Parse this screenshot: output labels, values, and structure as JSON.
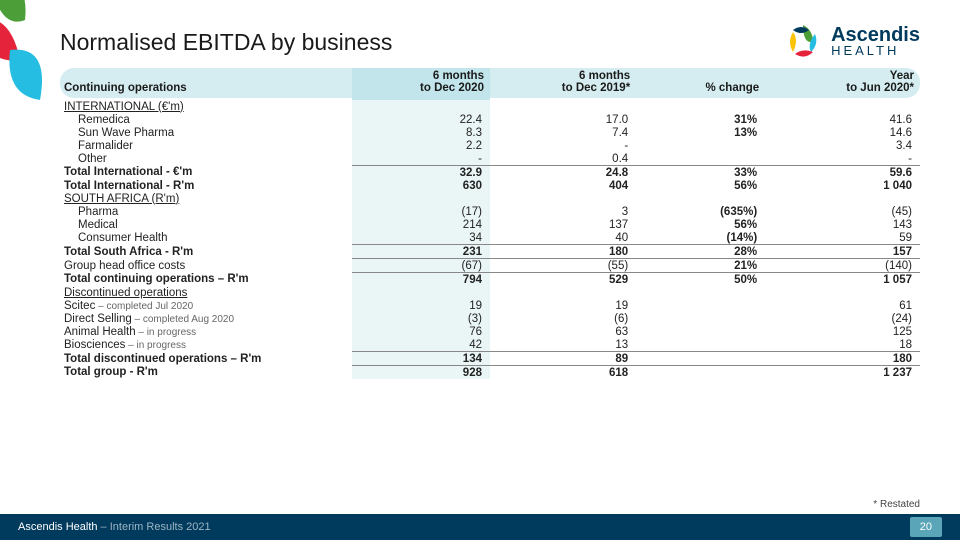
{
  "title": "Normalised EBITDA by business",
  "logo": {
    "name": "Ascendis",
    "tagline": "HEALTH"
  },
  "headers": {
    "label": "Continuing operations",
    "c1": "6 months\nto Dec 2020",
    "c2": "6 months\nto Dec 2019*",
    "c3": "% change",
    "c4": "Year\nto Jun 2020*"
  },
  "rows": [
    {
      "label": "INTERNATIONAL (€'m)",
      "style": "u",
      "c1": "",
      "c2": "",
      "c3": "",
      "c4": ""
    },
    {
      "label": "Remedica",
      "style": "ind",
      "c1": "22.4",
      "c2": "17.0",
      "c3": "31%",
      "c3b": true,
      "c4": "41.6"
    },
    {
      "label": "Sun Wave Pharma",
      "style": "ind",
      "c1": "8.3",
      "c2": "7.4",
      "c3": "13%",
      "c3b": true,
      "c4": "14.6"
    },
    {
      "label": "Farmalider",
      "style": "ind",
      "c1": "2.2",
      "c2": "-",
      "c3": "",
      "c4": "3.4"
    },
    {
      "label": "Other",
      "style": "ind",
      "c1": "-",
      "c2": "0.4",
      "c3": "",
      "c4": "-"
    },
    {
      "label": "Total International - €'m",
      "style": "b",
      "line": true,
      "c1": "32.9",
      "c2": "24.8",
      "c3": "33%",
      "c3b": true,
      "c4": "59.6"
    },
    {
      "label": "Total International - R'm",
      "style": "b",
      "c1": "630",
      "c2": "404",
      "c3": "56%",
      "c3b": true,
      "c4": "1 040"
    },
    {
      "label": "SOUTH AFRICA (R'm)",
      "style": "u",
      "c1": "",
      "c2": "",
      "c3": "",
      "c4": ""
    },
    {
      "label": "Pharma",
      "style": "ind",
      "c1": "(17)",
      "c2": "3",
      "c3": "(635%)",
      "c3b": true,
      "c4": "(45)"
    },
    {
      "label": "Medical",
      "style": "ind",
      "c1": "214",
      "c2": "137",
      "c3": "56%",
      "c3b": true,
      "c4": "143"
    },
    {
      "label": "Consumer Health",
      "style": "ind",
      "c1": "34",
      "c2": "40",
      "c3": "(14%)",
      "c3b": true,
      "c4": "59"
    },
    {
      "label": "Total South Africa - R'm",
      "style": "b",
      "line": true,
      "c1": "231",
      "c2": "180",
      "c3": "28%",
      "c3b": true,
      "c4": "157"
    },
    {
      "label": "Group head office costs",
      "line": true,
      "c1": "(67)",
      "c2": "(55)",
      "c3": "21%",
      "c3b": true,
      "c4": "(140)"
    },
    {
      "label": "Total continuing operations – R'm",
      "style": "b",
      "line": true,
      "c1": "794",
      "c2": "529",
      "c3": "50%",
      "c3b": true,
      "c4": "1 057"
    },
    {
      "label": "Discontinued operations",
      "style": "u",
      "c1": "",
      "c2": "",
      "c3": "",
      "c4": ""
    },
    {
      "label": "Scitec",
      "sub": " – completed Jul 2020",
      "c1": "19",
      "c2": "19",
      "c3": "",
      "c4": "61"
    },
    {
      "label": "Direct Selling",
      "sub": " – completed Aug 2020",
      "c1": "(3)",
      "c2": "(6)",
      "c3": "",
      "c4": "(24)"
    },
    {
      "label": "Animal Health",
      "sub": " – in progress",
      "c1": "76",
      "c2": "63",
      "c3": "",
      "c4": "125"
    },
    {
      "label": "Biosciences",
      "sub": " – in progress",
      "c1": "42",
      "c2": "13",
      "c3": "",
      "c4": "18"
    },
    {
      "label": "Total discontinued operations – R'm",
      "style": "b",
      "line": true,
      "c1": "134",
      "c2": "89",
      "c3": "",
      "c4": "180"
    },
    {
      "label": "Total group - R'm",
      "style": "b",
      "line": true,
      "c1": "928",
      "c2": "618",
      "c3": "",
      "c4": "1 237"
    }
  ],
  "restated": "* Restated",
  "footer": {
    "company": "Ascendis Health",
    "sub": " – Interim Results 2021",
    "page": "20"
  },
  "colors": {
    "footer_bg": "#003a5d",
    "band": "#d5edf0",
    "highlight": "#eaf5f6"
  }
}
